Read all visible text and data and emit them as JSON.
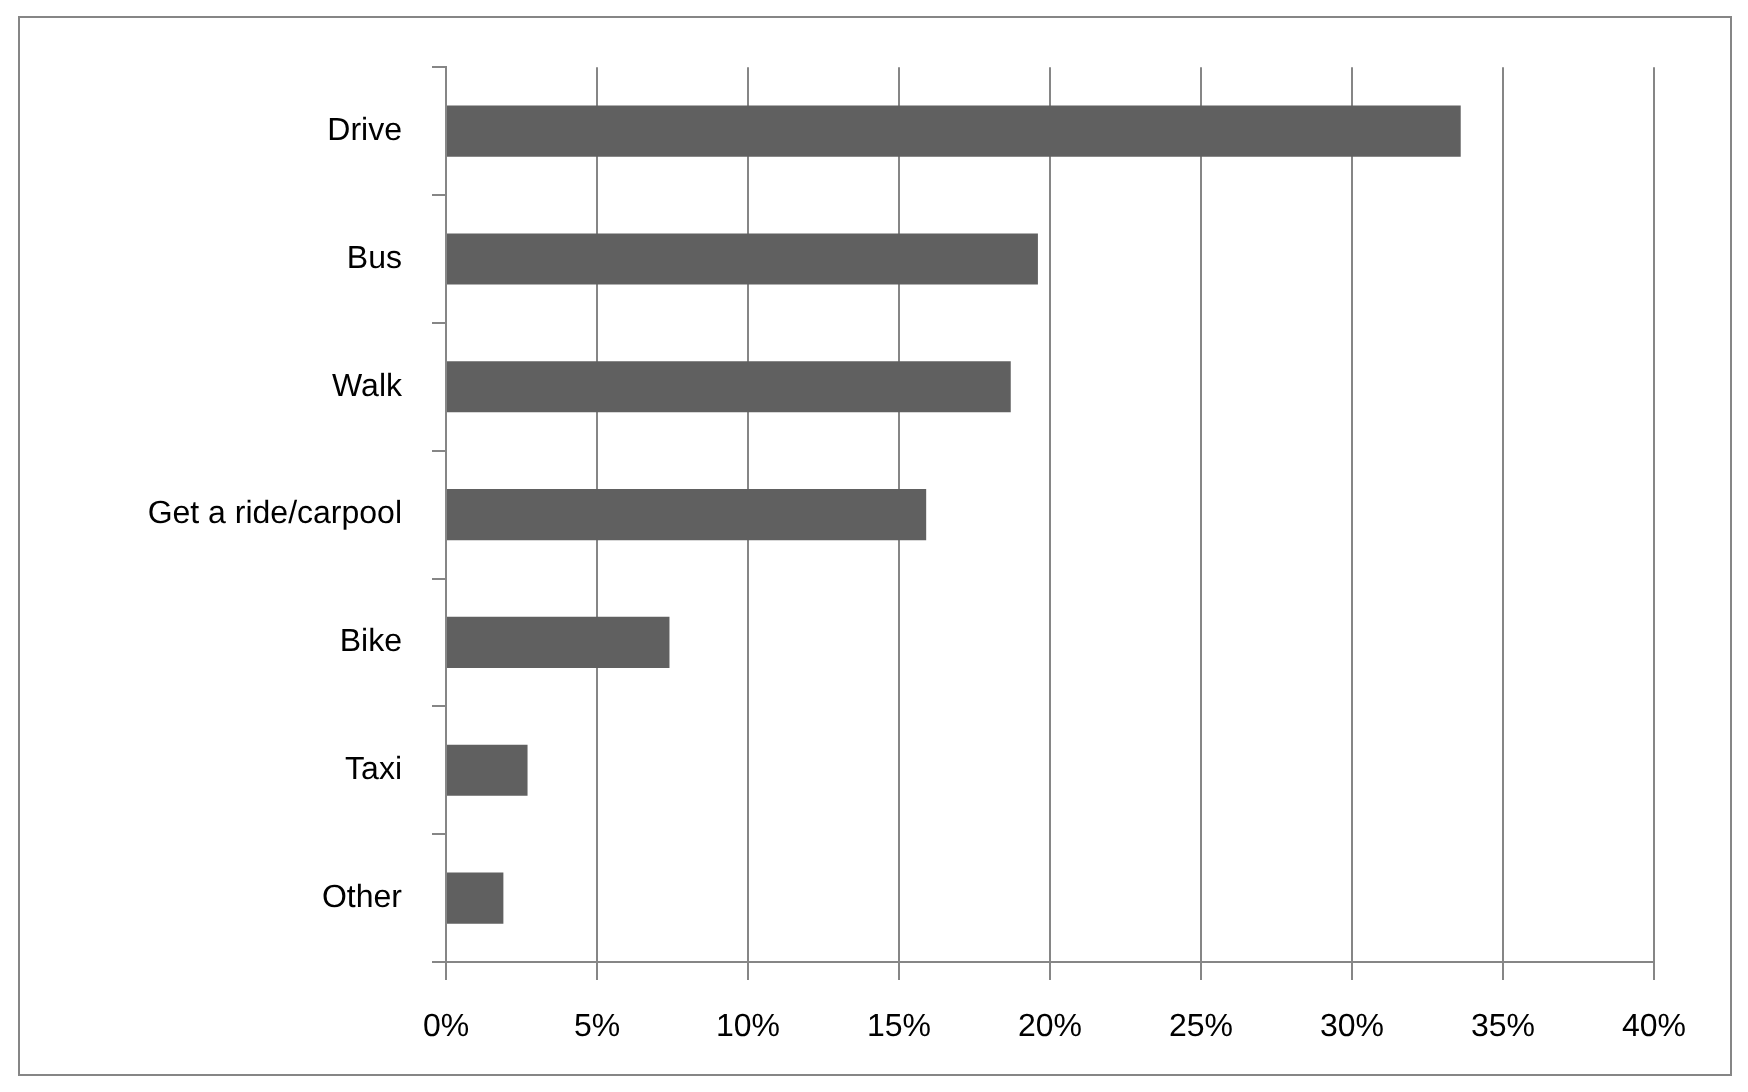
{
  "chart_data": {
    "type": "bar",
    "orientation": "horizontal",
    "categories": [
      "Drive",
      "Bus",
      "Walk",
      "Get a ride/carpool",
      "Bike",
      "Taxi",
      "Other"
    ],
    "values": [
      33.6,
      19.6,
      18.7,
      15.9,
      7.4,
      2.7,
      1.9
    ],
    "color": "#606060",
    "xlim": [
      0,
      40
    ],
    "xticks": [
      {
        "value": 0,
        "label": "0%"
      },
      {
        "value": 5,
        "label": "5%"
      },
      {
        "value": 10,
        "label": "10%"
      },
      {
        "value": 15,
        "label": "15%"
      },
      {
        "value": 20,
        "label": "20%"
      },
      {
        "value": 25,
        "label": "25%"
      },
      {
        "value": 30,
        "label": "30%"
      },
      {
        "value": 35,
        "label": "35%"
      },
      {
        "value": 40,
        "label": "40%"
      }
    ],
    "grid": "x"
  }
}
